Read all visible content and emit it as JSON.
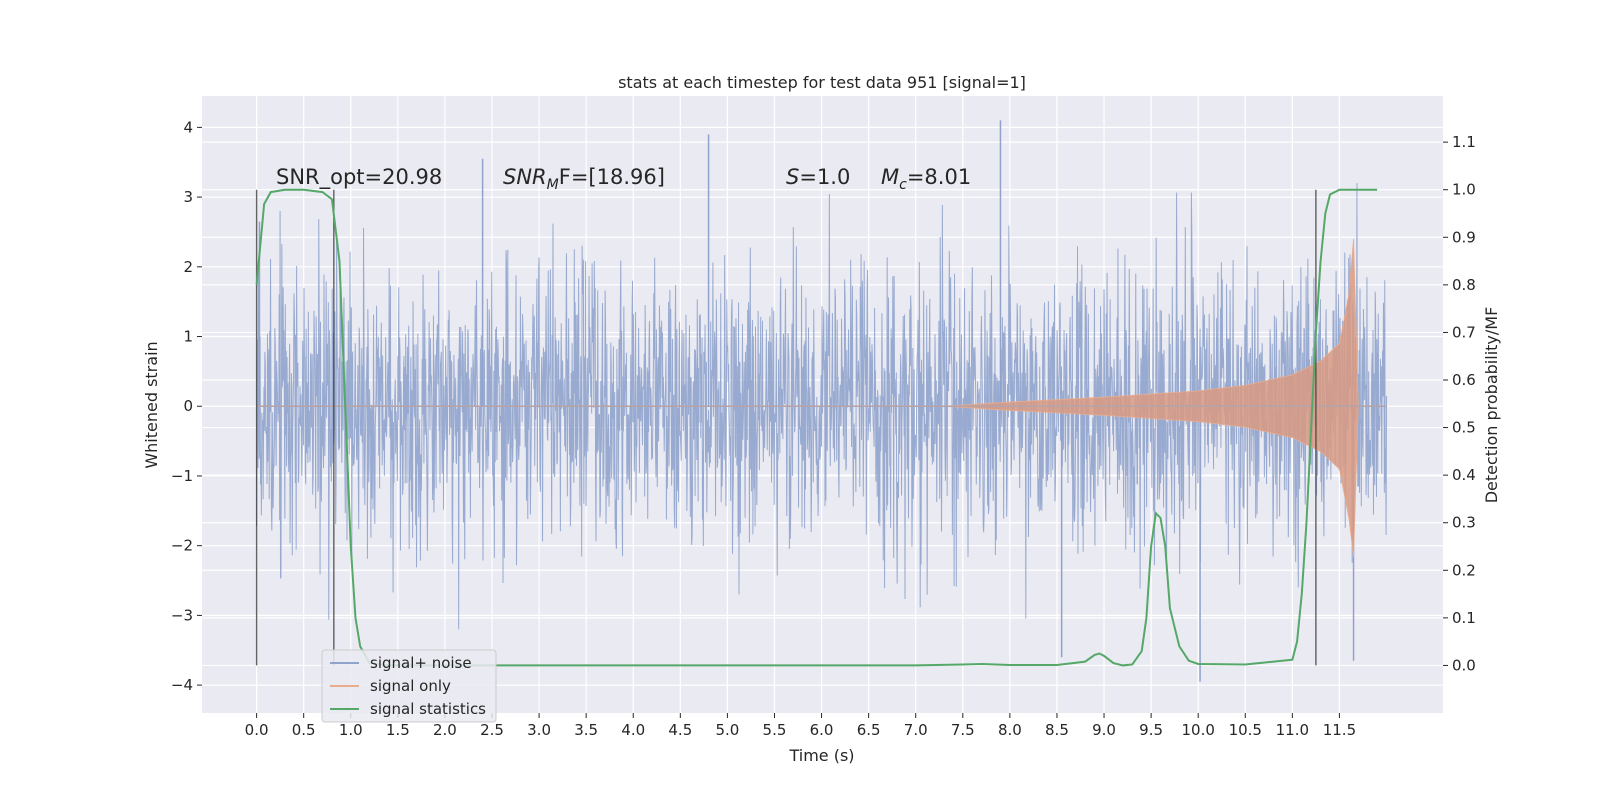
{
  "chart_data": {
    "type": "line",
    "title": "stats at each timestep for test data 951 [signal=1]",
    "xlabel": "Time (s)",
    "ylabel": "Whitened strain",
    "y2label": "Detection probability/MF",
    "xlim": [
      -0.58,
      12.6
    ],
    "ylim": [
      -4.4,
      4.45
    ],
    "y2lim": [
      -0.1,
      1.197
    ],
    "x_ticks": [
      "0.0",
      "0.5",
      "1.0",
      "1.5",
      "2.0",
      "2.5",
      "3.0",
      "3.5",
      "4.0",
      "4.5",
      "5.0",
      "5.5",
      "6.0",
      "6.5",
      "7.0",
      "7.5",
      "8.0",
      "8.5",
      "9.0",
      "9.5",
      "10.0",
      "10.5",
      "11.0",
      "11.5"
    ],
    "y_ticks": [
      "−4",
      "−3",
      "−2",
      "−1",
      "0",
      "1",
      "2",
      "3",
      "4"
    ],
    "y2_ticks": [
      "0.0",
      "0.1",
      "0.2",
      "0.3",
      "0.4",
      "0.5",
      "0.6",
      "0.7",
      "0.8",
      "0.9",
      "1.0",
      "1.1"
    ],
    "grid": true,
    "legend_position": "lower-left",
    "annotations": {
      "snr_opt": "SNR_opt=20.98",
      "snr_mf_label": "SNR",
      "snr_mf_sub": "M",
      "snr_mf_value": "F=[18.96]",
      "s_label": "S",
      "s_value": "=1.0",
      "mc_label": "M",
      "mc_sub": "c",
      "mc_value": "=8.01"
    },
    "vertical_markers": [
      0.0,
      0.82,
      11.25
    ],
    "series": [
      {
        "name": "signal+ noise",
        "color": "#8fa3cc",
        "axis": "left",
        "x_range": [
          0.0,
          12.0
        ],
        "typical_amplitude": 1.3,
        "notable_peaks": [
          [
            0.03,
            2.65
          ],
          [
            2.4,
            3.55
          ],
          [
            4.8,
            3.9
          ],
          [
            7.9,
            4.1
          ],
          [
            8.55,
            -3.6
          ],
          [
            10.02,
            -3.95
          ],
          [
            11.65,
            -3.65
          ]
        ]
      },
      {
        "name": "signal only",
        "color": "#dd8452",
        "axis": "left",
        "envelope": [
          [
            7.3,
            0.0
          ],
          [
            8.0,
            0.06
          ],
          [
            9.0,
            0.13
          ],
          [
            10.0,
            0.22
          ],
          [
            10.5,
            0.3
          ],
          [
            11.0,
            0.45
          ],
          [
            11.3,
            0.65
          ],
          [
            11.5,
            0.9
          ],
          [
            11.6,
            1.6
          ],
          [
            11.65,
            2.4
          ],
          [
            11.7,
            0.0
          ]
        ]
      },
      {
        "name": "signal statistics",
        "color": "#55a868",
        "axis": "right",
        "x": [
          0.0,
          0.08,
          0.15,
          0.3,
          0.5,
          0.7,
          0.8,
          0.88,
          0.95,
          1.0,
          1.05,
          1.1,
          1.2,
          1.4,
          2.0,
          3.0,
          4.0,
          5.0,
          6.0,
          7.0,
          7.5,
          7.7,
          8.0,
          8.5,
          8.8,
          8.9,
          8.95,
          9.0,
          9.1,
          9.2,
          9.3,
          9.4,
          9.45,
          9.5,
          9.55,
          9.6,
          9.65,
          9.7,
          9.8,
          9.9,
          10.0,
          10.5,
          11.0,
          11.05,
          11.1,
          11.15,
          11.2,
          11.25,
          11.3,
          11.35,
          11.4,
          11.5,
          11.6,
          11.7,
          11.8,
          11.9
        ],
        "y": [
          0.8,
          0.97,
          0.995,
          1.0,
          1.0,
          0.995,
          0.98,
          0.85,
          0.5,
          0.25,
          0.1,
          0.04,
          0.005,
          0.0,
          0.0,
          0.0,
          0.0,
          0.0,
          0.0,
          0.0,
          0.002,
          0.003,
          0.001,
          0.001,
          0.008,
          0.022,
          0.025,
          0.02,
          0.005,
          0.0,
          0.002,
          0.03,
          0.1,
          0.25,
          0.32,
          0.31,
          0.25,
          0.12,
          0.04,
          0.01,
          0.003,
          0.002,
          0.012,
          0.05,
          0.15,
          0.3,
          0.5,
          0.7,
          0.85,
          0.95,
          0.99,
          1.0,
          1.0,
          1.0,
          1.0,
          1.0
        ]
      }
    ]
  }
}
